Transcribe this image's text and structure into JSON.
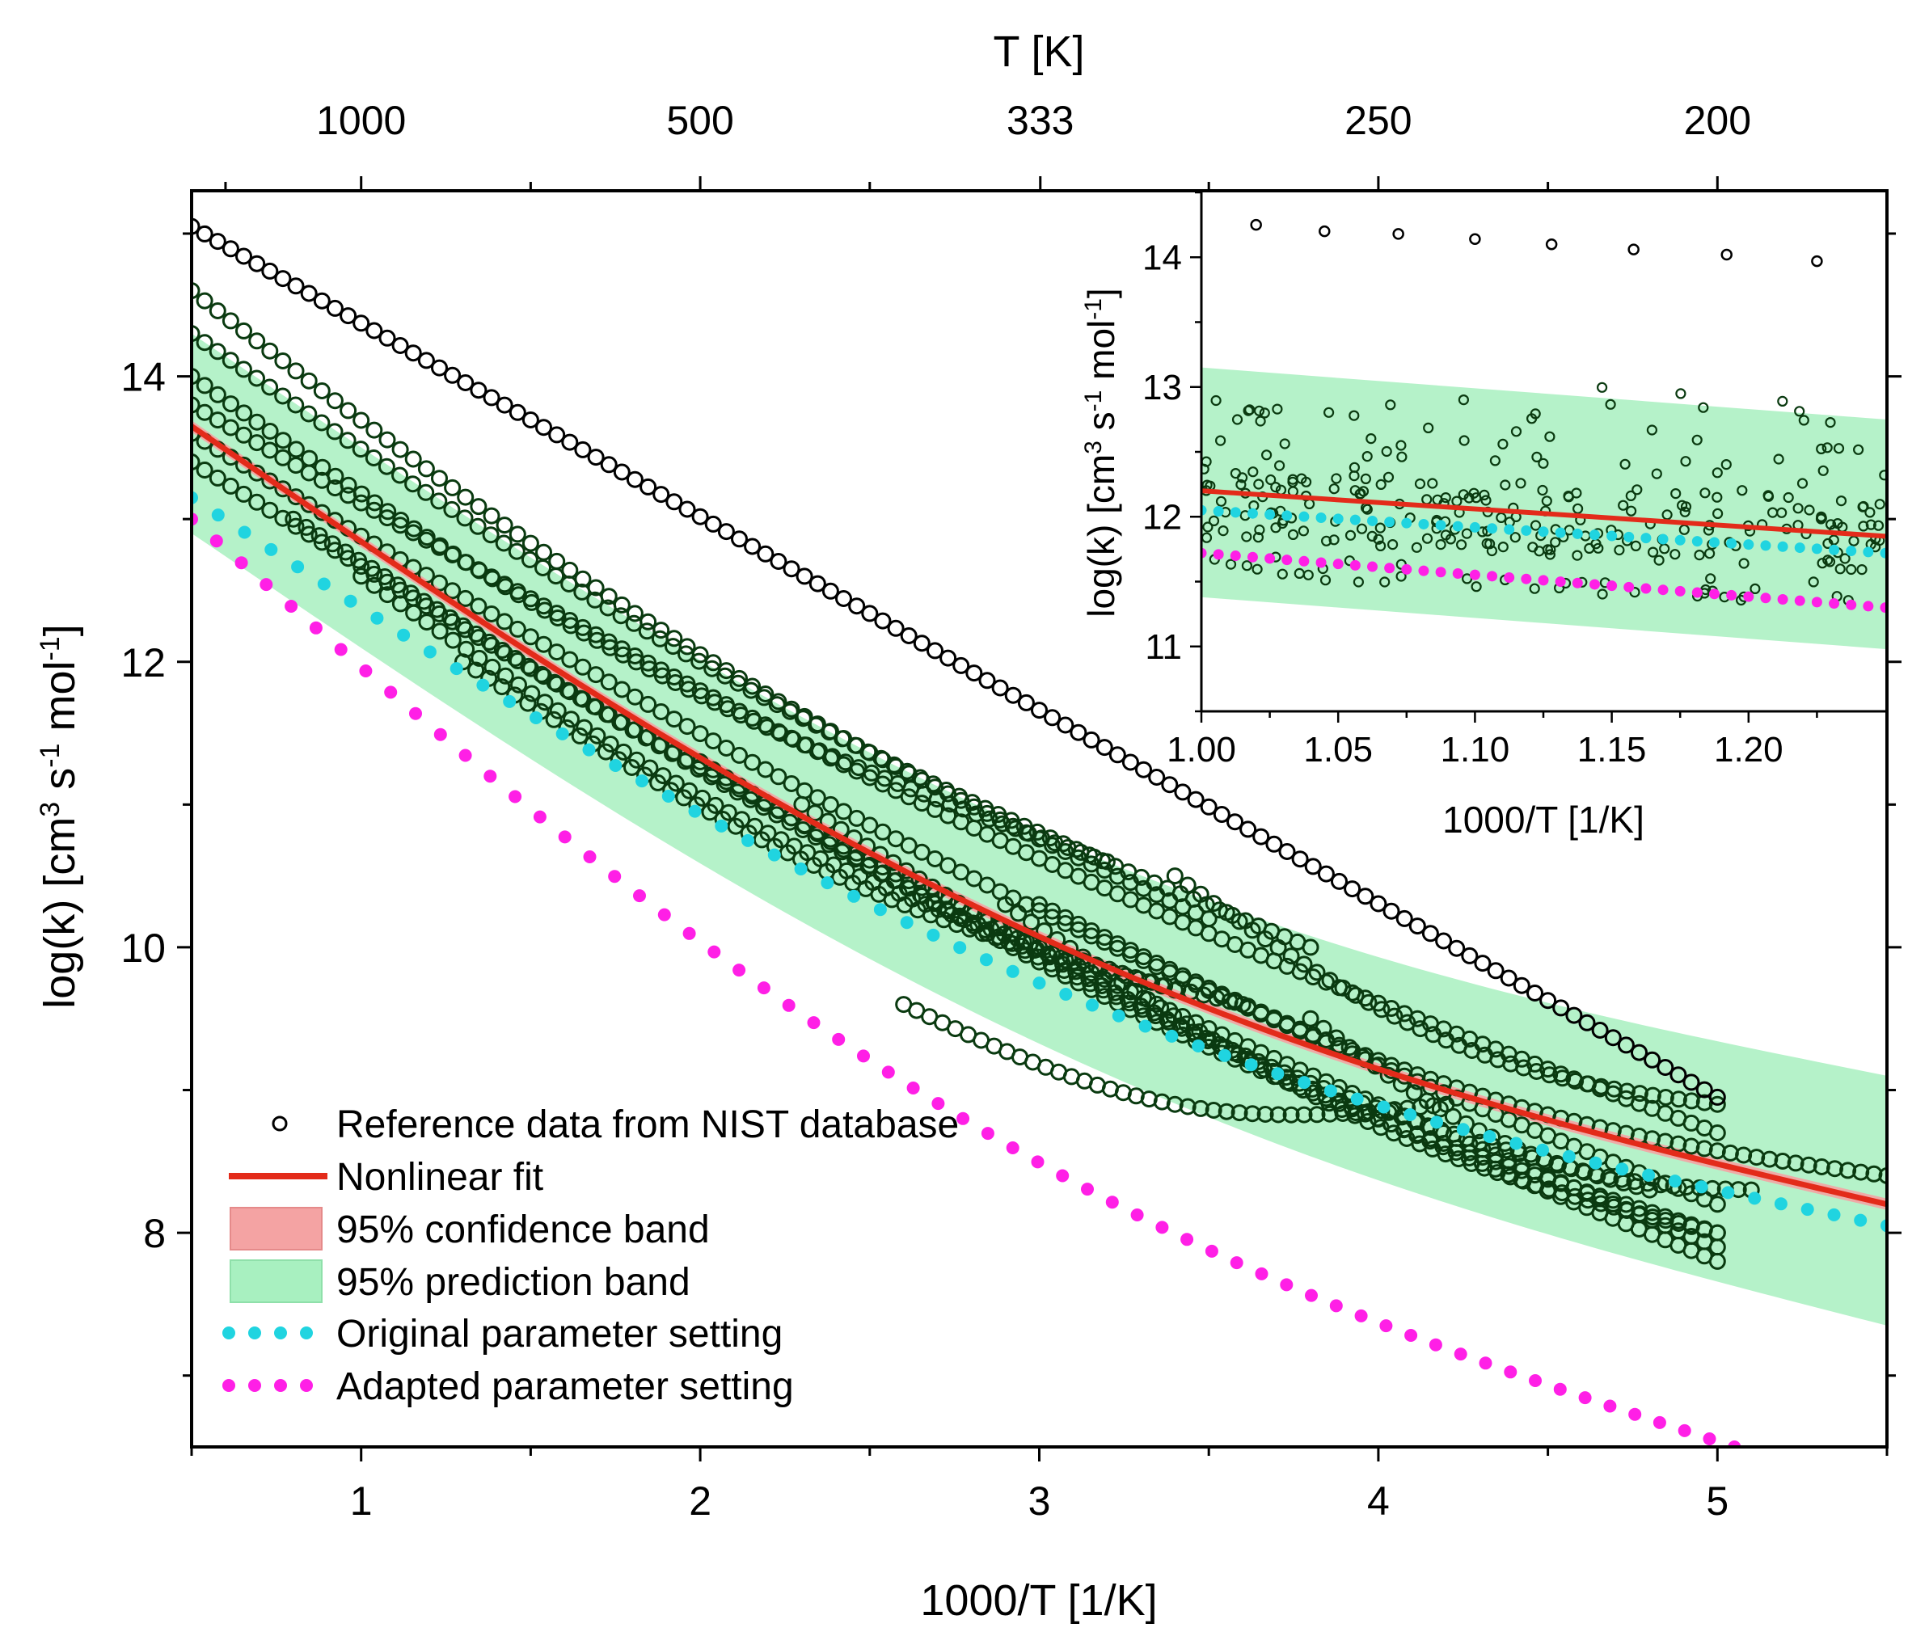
{
  "chart_data": [
    {
      "type": "scatter",
      "id": "main",
      "xlabel": "1000/T [1/K]",
      "ylabel": "log(k) [cm³ s⁻¹ mol⁻¹]",
      "ylabel_parts": {
        "base": "log(k) [cm",
        "exp1": "3",
        "mid1": " s",
        "exp2": "-1",
        "mid2": " mol",
        "exp3": "-1",
        "end": "]"
      },
      "top_xlabel": "T [K]",
      "xlim": [
        0.5,
        5.5
      ],
      "ylim": [
        6.5,
        15.3
      ],
      "x_ticks": [
        1,
        2,
        3,
        4,
        5
      ],
      "x_tick_labels": [
        "1",
        "2",
        "3",
        "4",
        "5"
      ],
      "y_ticks": [
        8,
        10,
        12,
        14
      ],
      "y_tick_labels": [
        "8",
        "10",
        "12",
        "14"
      ],
      "top_ticks": [
        1000,
        500,
        333,
        250,
        200
      ],
      "top_tick_labels": [
        "1000",
        "500",
        "333",
        "250",
        "200"
      ],
      "series": [
        {
          "name": "Reference data from NIST database",
          "kind": "marker",
          "color": "#0a3a10",
          "lines": [
            {
              "x0": 0.5,
              "x1": 3.5,
              "y0": 14.6,
              "y1": 10.2
            },
            {
              "x0": 0.5,
              "x1": 3.8,
              "y0": 14.3,
              "y1": 10.0
            },
            {
              "x0": 0.5,
              "x1": 3.2,
              "y0": 14.0,
              "y1": 10.6
            },
            {
              "x0": 0.5,
              "x1": 5.0,
              "y0": 13.8,
              "y1": 8.7
            },
            {
              "x0": 0.5,
              "x1": 5.0,
              "y0": 13.6,
              "y1": 8.2
            },
            {
              "x0": 0.5,
              "x1": 5.0,
              "y0": 13.4,
              "y1": 7.9
            },
            {
              "x0": 0.8,
              "x1": 5.0,
              "y0": 13.0,
              "y1": 7.8
            },
            {
              "x0": 1.0,
              "x1": 3.4,
              "y0": 12.6,
              "y1": 9.7
            },
            {
              "x0": 1.3,
              "x1": 3.6,
              "y0": 12.0,
              "y1": 9.6
            },
            {
              "x0": 2.0,
              "x1": 5.0,
              "y0": 11.3,
              "y1": 8.0
            },
            {
              "x0": 2.3,
              "x1": 4.8,
              "y0": 11.0,
              "y1": 8.3
            },
            {
              "x0": 2.6,
              "x1": 4.2,
              "y0": 9.6,
              "y1": 8.9
            },
            {
              "x0": 2.9,
              "x1": 5.0,
              "y0": 10.3,
              "y1": 8.0
            },
            {
              "x0": 3.0,
              "x1": 5.5,
              "y0": 10.3,
              "y1": 8.4
            },
            {
              "x0": 3.4,
              "x1": 5.0,
              "y0": 10.5,
              "y1": 8.9
            },
            {
              "x0": 3.8,
              "x1": 5.1,
              "y0": 9.5,
              "y1": 8.3
            },
            {
              "x0": 0.5,
              "x1": 5.0,
              "y0": 15.05,
              "y1": 8.95
            }
          ]
        },
        {
          "name": "Nonlinear fit",
          "kind": "line",
          "color": "#e32b1a",
          "y_at_0_5": 13.65,
          "y_at_5_5": 8.2
        },
        {
          "name": "95% confidence band",
          "kind": "band",
          "color": "#f4a3a3"
        },
        {
          "name": "95% prediction band",
          "kind": "band",
          "color": "#a8f0c0",
          "upper_y_at_0_5": 14.3,
          "upper_y_at_5_5": 9.1,
          "lower_y_at_0_5": 12.9,
          "lower_y_at_5_5": 7.35
        },
        {
          "name": "Original parameter setting",
          "kind": "dots",
          "color": "#20d4e0",
          "y_at_0_5": 13.15,
          "y_at_5_5": 8.05
        },
        {
          "name": "Adapted parameter setting",
          "kind": "dots",
          "color": "#ff1fe6",
          "y_at_0_5": 13.0,
          "y_at_5_05": 6.5
        }
      ],
      "legend": {
        "position": "bottom-left",
        "items": [
          "Reference data from NIST database",
          "Nonlinear fit",
          "95% confidence band",
          "95% prediction band",
          "Original parameter setting",
          "Adapted parameter setting"
        ]
      }
    },
    {
      "type": "scatter",
      "id": "inset",
      "xlabel": "1000/T [1/K]",
      "ylabel": "log(k) [cm³ s⁻¹ mol⁻¹]",
      "ylabel_parts": {
        "base": "log(k) [cm",
        "exp1": "3",
        "mid1": " s",
        "exp2": "-1",
        "mid2": " mol",
        "exp3": "-1",
        "end": "]"
      },
      "xlim": [
        1.0,
        1.25
      ],
      "ylim": [
        10.5,
        14.5
      ],
      "x_ticks": [
        1.0,
        1.05,
        1.1,
        1.15,
        1.2
      ],
      "x_tick_labels": [
        "1.00",
        "1.05",
        "1.10",
        "1.15",
        "1.20"
      ],
      "y_ticks": [
        11,
        12,
        13,
        14
      ],
      "y_tick_labels": [
        "11",
        "12",
        "13",
        "14"
      ],
      "top_markers": {
        "x": [
          1.02,
          1.045,
          1.072,
          1.1,
          1.128,
          1.158,
          1.192,
          1.225
        ],
        "y": [
          14.25,
          14.2,
          14.18,
          14.14,
          14.1,
          14.06,
          14.02,
          13.97
        ]
      },
      "fit_line": {
        "y_at_1_00": 12.2,
        "y_at_1_25": 11.85
      },
      "original_dots": {
        "y_at_1_00": 12.05,
        "y_at_1_25": 11.72
      },
      "adapted_dots": {
        "y_at_1_00": 11.72,
        "y_at_1_25": 11.3
      },
      "prediction_band": {
        "upper_y_at_1_00": 13.15,
        "upper_y_at_1_25": 12.75,
        "lower_y_at_1_00": 11.38,
        "lower_y_at_1_25": 10.98
      }
    }
  ]
}
